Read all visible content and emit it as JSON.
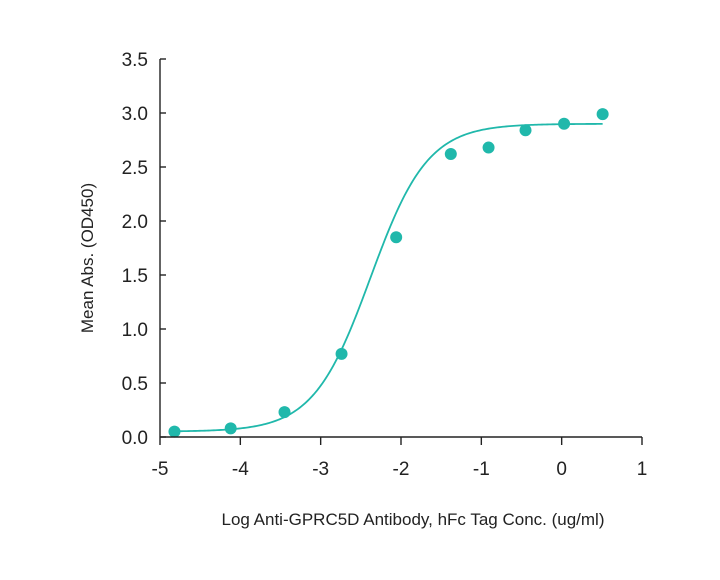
{
  "chart_data": {
    "type": "scatter",
    "title": "",
    "xlabel": "Log Anti-GPRC5D Antibody, hFc Tag Conc. (ug/ml)",
    "ylabel": "Mean Abs. (OD450)",
    "xlim": [
      -5,
      1
    ],
    "ylim": [
      0,
      3.5
    ],
    "x_ticks": [
      "-5",
      "-4",
      "-3",
      "-2",
      "-1",
      "0",
      "1"
    ],
    "y_ticks": [
      "0.0",
      "0.5",
      "1.0",
      "1.5",
      "2.0",
      "2.5",
      "3.0",
      "3.5"
    ],
    "grid": false,
    "legend": "none",
    "color": "#20b8ab",
    "series": [
      {
        "x": [
          -4.82,
          -4.12,
          -3.45,
          -2.74,
          -2.06,
          -1.38,
          -0.91,
          -0.45,
          0.03,
          0.51
        ],
        "y": [
          0.05,
          0.08,
          0.23,
          0.77,
          1.85,
          2.62,
          2.68,
          2.84,
          2.9,
          2.99
        ]
      }
    ],
    "fit_curve": {
      "model": "4PL",
      "bottom": 0.05,
      "top": 2.9,
      "log_ec50": -2.38,
      "hill_slope": 1.22
    }
  }
}
